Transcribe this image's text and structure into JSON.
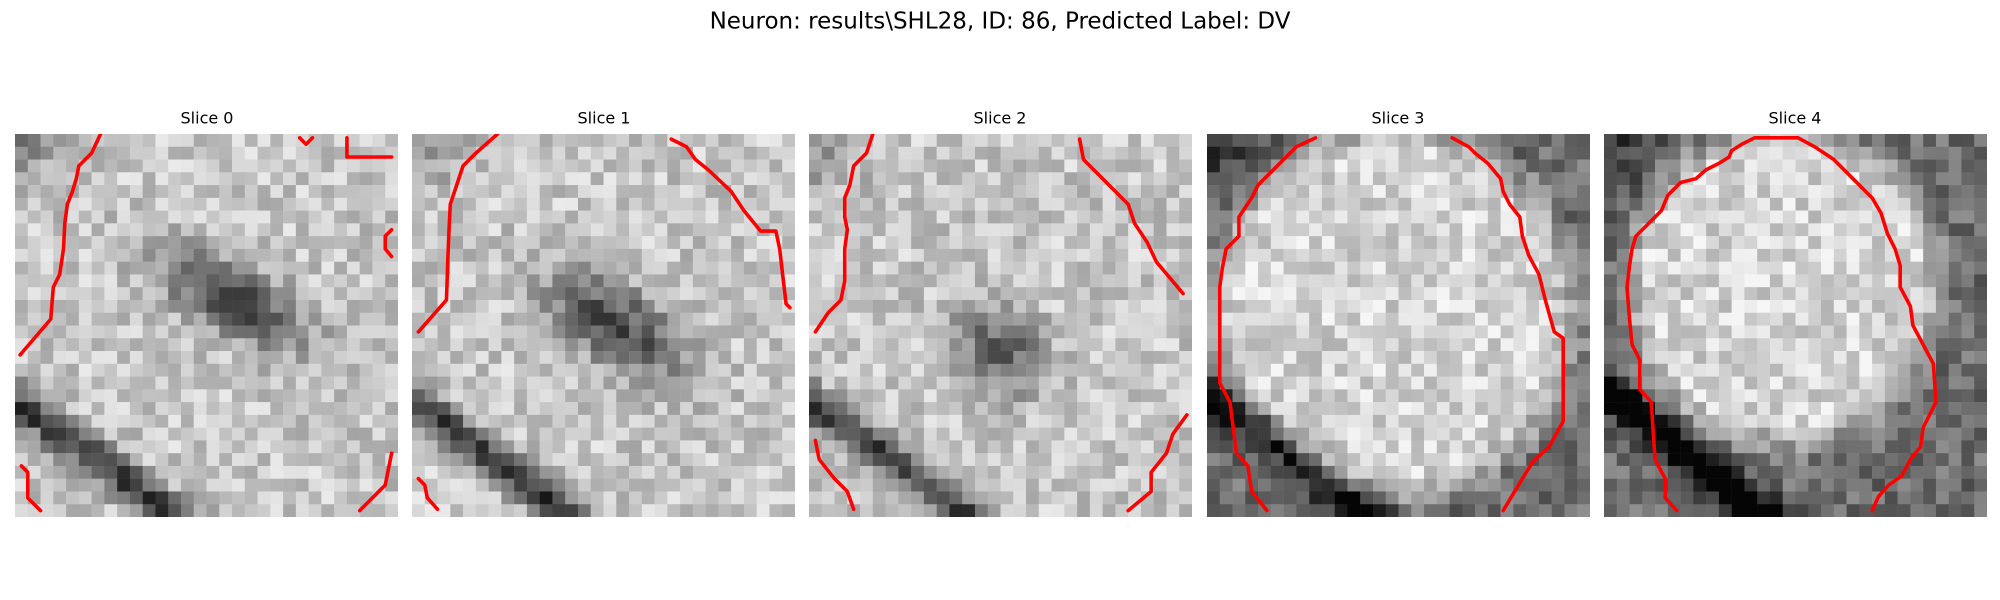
{
  "title": "Neuron: results\\SHL28, ID: 86, Predicted Label: DV",
  "panels": [
    {
      "title": "Slice 0"
    },
    {
      "title": "Slice 1"
    },
    {
      "title": "Slice 2"
    },
    {
      "title": "Slice 3"
    },
    {
      "title": "Slice 4"
    }
  ]
}
